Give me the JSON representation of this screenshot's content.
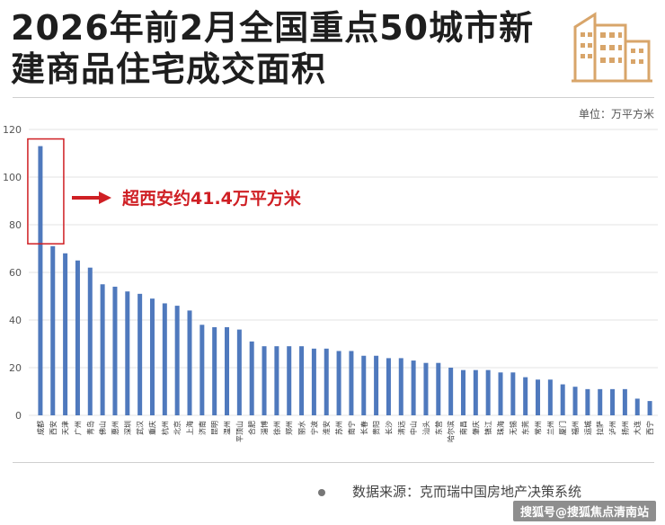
{
  "title": "2026年前2月全国重点50城市新建商品住宅成交面积",
  "unit_label": "单位：万平方米",
  "source_label": "数据来源：克而瑞中国房地产决策系统",
  "watermark_text": "搜狐号@搜狐焦点清南站",
  "colors": {
    "bar": "#4f79bd",
    "accent": "#cf1f24",
    "logo": "#d8a56a"
  },
  "chart_data": {
    "type": "bar",
    "title": "2026年前2月全国重点50城市新建商品住宅成交面积",
    "ylabel": "万平方米",
    "ylim": [
      0,
      120
    ],
    "yticks": [
      0,
      20,
      40,
      60,
      80,
      100,
      120
    ],
    "grid": true,
    "categories": [
      "成都",
      "西安",
      "天津",
      "广州",
      "青岛",
      "佛山",
      "惠州",
      "深圳",
      "武汉",
      "重庆",
      "杭州",
      "北京",
      "上海",
      "济南",
      "昆明",
      "温州",
      "平顶山",
      "合肥",
      "淄博",
      "徐州",
      "郑州",
      "丽水",
      "宁波",
      "淮安",
      "苏州",
      "南宁",
      "长春",
      "贵阳",
      "长沙",
      "清远",
      "中山",
      "汕头",
      "东营",
      "哈尔滨",
      "南昌",
      "肇庆",
      "镇江",
      "珠海",
      "无锡",
      "东莞",
      "常州",
      "兰州",
      "厦门",
      "福州",
      "运城",
      "拉萨",
      "泸州",
      "扬州",
      "大连",
      "西宁"
    ],
    "values": [
      113,
      71,
      68,
      65,
      62,
      55,
      54,
      52,
      51,
      49,
      47,
      46,
      44,
      38,
      37,
      37,
      36,
      31,
      29,
      29,
      29,
      29,
      28,
      28,
      27,
      27,
      25,
      25,
      24,
      24,
      23,
      22,
      22,
      20,
      19,
      19,
      19,
      18,
      18,
      16,
      15,
      15,
      13,
      12,
      11,
      11,
      11,
      11,
      7,
      6
    ],
    "annotation": {
      "text": "超西安约41.4万平方米",
      "category": "成都"
    }
  }
}
